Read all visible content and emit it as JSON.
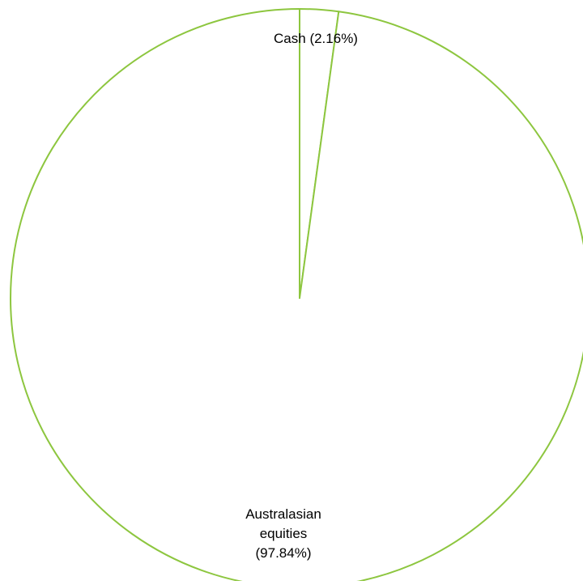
{
  "chart_data": {
    "type": "pie",
    "title": "",
    "slices": [
      {
        "name": "Cash",
        "value": 2.16,
        "label_lines": [
          "Cash (2.16%)"
        ]
      },
      {
        "name": "Australasian equities",
        "value": 97.84,
        "label_lines": [
          "Australasian",
          "equities",
          "(97.84%)"
        ]
      }
    ],
    "start_angle_deg": 0,
    "direction": "clockwise",
    "stroke_color": "#8dc63f",
    "fill_color": "#ffffff",
    "legend": "none"
  }
}
